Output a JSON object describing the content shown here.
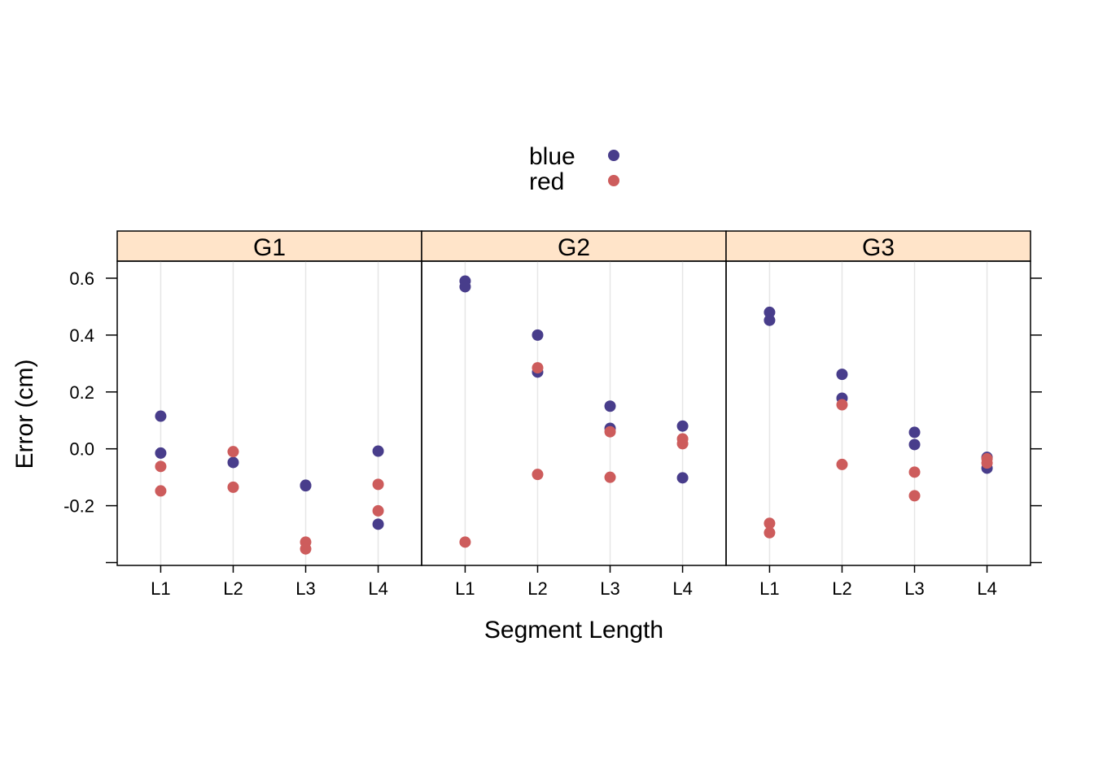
{
  "chart_data": {
    "type": "scatter",
    "xlabel": "Segment Length",
    "ylabel": "Error (cm)",
    "categories": [
      "L1",
      "L2",
      "L3",
      "L4"
    ],
    "ylim": [
      -0.41,
      0.66
    ],
    "yticks": [
      -0.4,
      -0.2,
      0.0,
      0.2,
      0.4,
      0.6
    ],
    "ytick_labels": [
      "",
      "-0.2",
      "0.0",
      "0.2",
      "0.4",
      "0.6"
    ],
    "grid": "vertical",
    "legend": {
      "placement": "top-center"
    },
    "colors": {
      "blue": "#483D8B",
      "red": "#CD5C5C",
      "strip": "#FFE4C9",
      "grid": "#E6E6E6"
    },
    "series": [
      {
        "name": "blue",
        "color": "#483D8B"
      },
      {
        "name": "red",
        "color": "#CD5C5C"
      }
    ],
    "panels": [
      {
        "label": "G1",
        "points": {
          "blue": {
            "L1": [
              0.115,
              -0.015
            ],
            "L2": [
              -0.048
            ],
            "L3": [
              -0.128,
              -0.13
            ],
            "L4": [
              -0.008,
              -0.265
            ]
          },
          "red": {
            "L1": [
              -0.062,
              -0.148
            ],
            "L2": [
              -0.01,
              -0.135
            ],
            "L3": [
              -0.328,
              -0.352
            ],
            "L4": [
              -0.125,
              -0.218
            ]
          }
        }
      },
      {
        "label": "G2",
        "points": {
          "blue": {
            "L1": [
              0.59,
              0.57
            ],
            "L2": [
              0.4,
              0.27
            ],
            "L3": [
              0.15,
              0.072
            ],
            "L4": [
              0.08,
              -0.102
            ]
          },
          "red": {
            "L1": [
              -0.328
            ],
            "L2": [
              0.285,
              -0.09
            ],
            "L3": [
              0.06,
              -0.1
            ],
            "L4": [
              0.035,
              0.018
            ]
          }
        }
      },
      {
        "label": "G3",
        "points": {
          "blue": {
            "L1": [
              0.48,
              0.452
            ],
            "L2": [
              0.262,
              0.178
            ],
            "L3": [
              0.058,
              0.015
            ],
            "L4": [
              -0.03,
              -0.068
            ]
          },
          "red": {
            "L1": [
              -0.262,
              -0.295
            ],
            "L2": [
              0.155,
              -0.055
            ],
            "L3": [
              -0.082,
              -0.165
            ],
            "L4": [
              -0.035,
              -0.05
            ]
          }
        }
      }
    ]
  }
}
